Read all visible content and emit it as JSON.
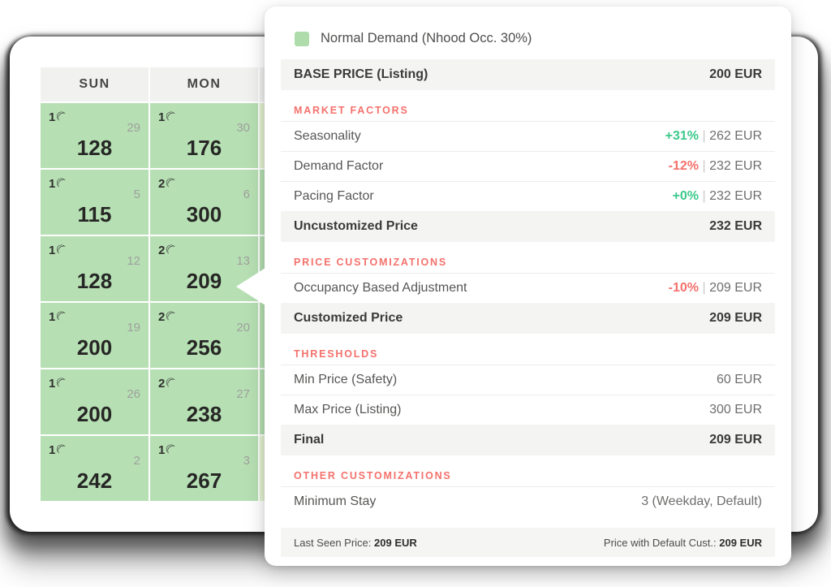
{
  "legend": {
    "label": "Normal Demand (Nhood Occ. 30%)"
  },
  "base_row": {
    "label": "BASE PRICE (Listing)",
    "value": "200 EUR"
  },
  "sections": [
    {
      "title": "MARKET FACTORS",
      "rows": [
        {
          "label": "Seasonality",
          "pct": "+31%",
          "pct_color": "green",
          "value": "262 EUR"
        },
        {
          "label": "Demand Factor",
          "pct": "-12%",
          "pct_color": "red",
          "value": "232 EUR"
        },
        {
          "label": "Pacing Factor",
          "pct": "+0%",
          "pct_color": "green",
          "value": "232 EUR"
        }
      ],
      "summary": {
        "label": "Uncustomized Price",
        "value": "232 EUR"
      }
    },
    {
      "title": "PRICE CUSTOMIZATIONS",
      "rows": [
        {
          "label": "Occupancy Based Adjustment",
          "pct": "-10%",
          "pct_color": "red",
          "value": "209 EUR"
        }
      ],
      "summary": {
        "label": "Customized Price",
        "value": "209 EUR"
      }
    },
    {
      "title": "THRESHOLDS",
      "rows": [
        {
          "label": "Min Price (Safety)",
          "value": "60 EUR"
        },
        {
          "label": "Max Price (Listing)",
          "value": "300 EUR"
        }
      ],
      "summary": {
        "label": "Final",
        "value": "209 EUR"
      }
    },
    {
      "title": "OTHER CUSTOMIZATIONS",
      "rows": [
        {
          "label": "Minimum Stay",
          "value": "3 (Weekday, Default)"
        }
      ],
      "summary": null
    }
  ],
  "footer": {
    "left_label": "Last Seen Price:",
    "left_value": "209 EUR",
    "right_label": "Price with Default Cust.:",
    "right_value": "209 EUR"
  },
  "calendar": {
    "headers": [
      "SUN",
      "MON"
    ],
    "weeks": [
      {
        "edge": "light",
        "cells": [
          {
            "moons": "1",
            "day": "29",
            "price": "128"
          },
          {
            "moons": "1",
            "day": "30",
            "price": "176"
          }
        ]
      },
      {
        "edge": "normal",
        "cells": [
          {
            "moons": "1",
            "day": "5",
            "price": "115"
          },
          {
            "moons": "2",
            "day": "6",
            "price": "300"
          }
        ]
      },
      {
        "edge": "normal",
        "cells": [
          {
            "moons": "1",
            "day": "12",
            "price": "128"
          },
          {
            "moons": "2",
            "day": "13",
            "price": "209"
          }
        ]
      },
      {
        "edge": "normal",
        "cells": [
          {
            "moons": "1",
            "day": "19",
            "price": "200"
          },
          {
            "moons": "2",
            "day": "20",
            "price": "256"
          }
        ]
      },
      {
        "edge": "normal",
        "cells": [
          {
            "moons": "1",
            "day": "26",
            "price": "200"
          },
          {
            "moons": "2",
            "day": "27",
            "price": "238"
          }
        ]
      },
      {
        "edge": "light",
        "cells": [
          {
            "moons": "1",
            "day": "2",
            "price": "242"
          },
          {
            "moons": "1",
            "day": "3",
            "price": "267"
          }
        ]
      }
    ]
  },
  "icons": {
    "min_stay_moon": "☾"
  },
  "colors": {
    "accent_green": "#3cc98b",
    "accent_red": "#f4716c",
    "calendar_cell_green": "#b6e0b3",
    "calendar_cell_light_green": "#e3f2d1",
    "legend_swatch_green": "#aedcab",
    "summary_band_gray": "#f4f4f3"
  }
}
